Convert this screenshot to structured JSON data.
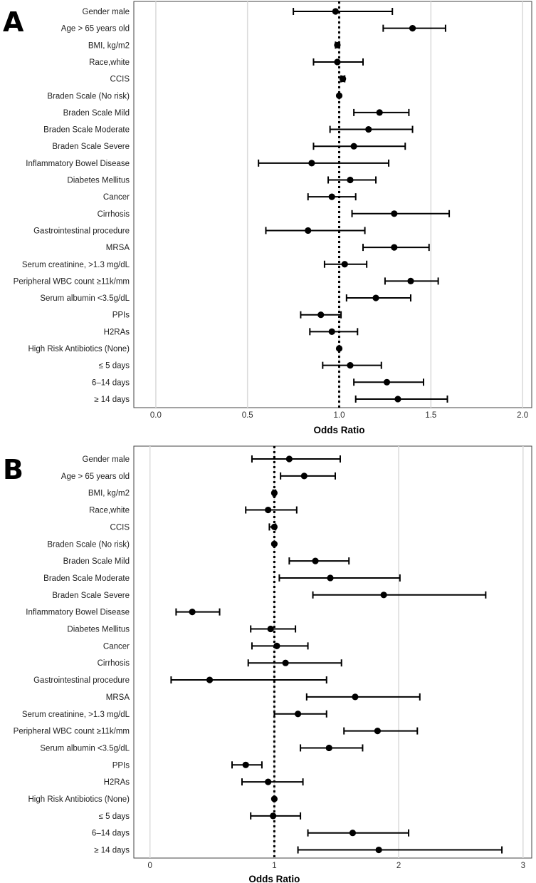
{
  "chart_data": [
    {
      "panel_letter": "A",
      "type": "forest",
      "xlabel": "Odds Ratio",
      "xlim": [
        -0.12,
        2.05
      ],
      "xticks": [
        0,
        0.5,
        1,
        1.5,
        2
      ],
      "xtick_labels": [
        "0.0",
        "0.5",
        "1.0",
        "1.5",
        "2.0"
      ],
      "reference_line": 1.0,
      "rows": [
        {
          "label": "Gender male",
          "or": 0.98,
          "lo": 0.75,
          "hi": 1.29
        },
        {
          "label": "Age > 65 years old",
          "or": 1.4,
          "lo": 1.24,
          "hi": 1.58
        },
        {
          "label": "BMI, kg/m2",
          "or": 0.99,
          "lo": 0.98,
          "hi": 1.0
        },
        {
          "label": "Race,white",
          "or": 0.99,
          "lo": 0.86,
          "hi": 1.13
        },
        {
          "label": "CCIS",
          "or": 1.02,
          "lo": 1.01,
          "hi": 1.03
        },
        {
          "label": "Braden Scale (No risk)",
          "or": 1.0,
          "lo": 1.0,
          "hi": 1.0
        },
        {
          "label": "Braden Scale Mild",
          "or": 1.22,
          "lo": 1.08,
          "hi": 1.38
        },
        {
          "label": "Braden Scale Moderate",
          "or": 1.16,
          "lo": 0.95,
          "hi": 1.4
        },
        {
          "label": "Braden Scale Severe",
          "or": 1.08,
          "lo": 0.86,
          "hi": 1.36
        },
        {
          "label": "Inflammatory Bowel Disease",
          "or": 0.85,
          "lo": 0.56,
          "hi": 1.27
        },
        {
          "label": "Diabetes Mellitus",
          "or": 1.06,
          "lo": 0.94,
          "hi": 1.2
        },
        {
          "label": "Cancer",
          "or": 0.96,
          "lo": 0.83,
          "hi": 1.09
        },
        {
          "label": "Cirrhosis",
          "or": 1.3,
          "lo": 1.07,
          "hi": 1.6
        },
        {
          "label": "Gastrointestinal procedure",
          "or": 0.83,
          "lo": 0.6,
          "hi": 1.14
        },
        {
          "label": "MRSA",
          "or": 1.3,
          "lo": 1.13,
          "hi": 1.49
        },
        {
          "label": "Serum creatinine, >1.3 mg/dL",
          "or": 1.03,
          "lo": 0.92,
          "hi": 1.15
        },
        {
          "label": "Peripheral WBC count ≥11k/mm",
          "or": 1.39,
          "lo": 1.25,
          "hi": 1.54
        },
        {
          "label": "Serum albumin <3.5g/dL",
          "or": 1.2,
          "lo": 1.04,
          "hi": 1.39
        },
        {
          "label": "PPIs",
          "or": 0.9,
          "lo": 0.79,
          "hi": 1.01
        },
        {
          "label": "H2RAs",
          "or": 0.96,
          "lo": 0.84,
          "hi": 1.1
        },
        {
          "label": "High Risk Antibiotics (None)",
          "or": 1.0,
          "lo": 1.0,
          "hi": 1.0
        },
        {
          "label": "≤ 5 days",
          "or": 1.06,
          "lo": 0.91,
          "hi": 1.23
        },
        {
          "label": "6–14 days",
          "or": 1.26,
          "lo": 1.08,
          "hi": 1.46
        },
        {
          "label": "≥ 14 days",
          "or": 1.32,
          "lo": 1.09,
          "hi": 1.59
        }
      ]
    },
    {
      "panel_letter": "B",
      "type": "forest",
      "xlabel": "Odds Ratio",
      "xlim": [
        -0.13,
        3.07
      ],
      "xticks": [
        0,
        1,
        2,
        3
      ],
      "xtick_labels": [
        "0",
        "1",
        "2",
        "3"
      ],
      "reference_line": 1.0,
      "rows": [
        {
          "label": "Gender male",
          "or": 1.12,
          "lo": 0.82,
          "hi": 1.53
        },
        {
          "label": "Age > 65 years old",
          "or": 1.24,
          "lo": 1.05,
          "hi": 1.49
        },
        {
          "label": "BMI, kg/m2",
          "or": 1.0,
          "lo": 0.99,
          "hi": 1.01
        },
        {
          "label": "Race,white",
          "or": 0.95,
          "lo": 0.77,
          "hi": 1.18
        },
        {
          "label": "CCIS",
          "or": 1.0,
          "lo": 0.96,
          "hi": 1.01
        },
        {
          "label": "Braden Scale (No risk)",
          "or": 1.0,
          "lo": 1.0,
          "hi": 1.0
        },
        {
          "label": "Braden Scale Mild",
          "or": 1.33,
          "lo": 1.12,
          "hi": 1.6
        },
        {
          "label": "Braden Scale Moderate",
          "or": 1.45,
          "lo": 1.04,
          "hi": 2.01
        },
        {
          "label": "Braden Scale Severe",
          "or": 1.88,
          "lo": 1.31,
          "hi": 2.7
        },
        {
          "label": "Inflammatory Bowel Disease",
          "or": 0.34,
          "lo": 0.21,
          "hi": 0.56
        },
        {
          "label": "Diabetes Mellitus",
          "or": 0.97,
          "lo": 0.81,
          "hi": 1.17
        },
        {
          "label": "Cancer",
          "or": 1.02,
          "lo": 0.82,
          "hi": 1.27
        },
        {
          "label": "Cirrhosis",
          "or": 1.09,
          "lo": 0.79,
          "hi": 1.54
        },
        {
          "label": "Gastrointestinal procedure",
          "or": 0.48,
          "lo": 0.17,
          "hi": 1.42
        },
        {
          "label": "MRSA",
          "or": 1.65,
          "lo": 1.26,
          "hi": 2.17
        },
        {
          "label": "Serum creatinine, >1.3 mg/dL",
          "or": 1.19,
          "lo": 1.0,
          "hi": 1.42
        },
        {
          "label": "Peripheral WBC count ≥11k/mm",
          "or": 1.83,
          "lo": 1.56,
          "hi": 2.15
        },
        {
          "label": "Serum albumin <3.5g/dL",
          "or": 1.44,
          "lo": 1.21,
          "hi": 1.71
        },
        {
          "label": "PPIs",
          "or": 0.77,
          "lo": 0.66,
          "hi": 0.9
        },
        {
          "label": "H2RAs",
          "or": 0.95,
          "lo": 0.74,
          "hi": 1.23
        },
        {
          "label": "High Risk Antibiotics (None)",
          "or": 1.0,
          "lo": 1.0,
          "hi": 1.0
        },
        {
          "label": "≤ 5 days",
          "or": 0.99,
          "lo": 0.81,
          "hi": 1.21
        },
        {
          "label": "6–14 days",
          "or": 1.63,
          "lo": 1.27,
          "hi": 2.08
        },
        {
          "label": "≥ 14 days",
          "or": 1.84,
          "lo": 1.19,
          "hi": 2.83
        }
      ]
    }
  ]
}
